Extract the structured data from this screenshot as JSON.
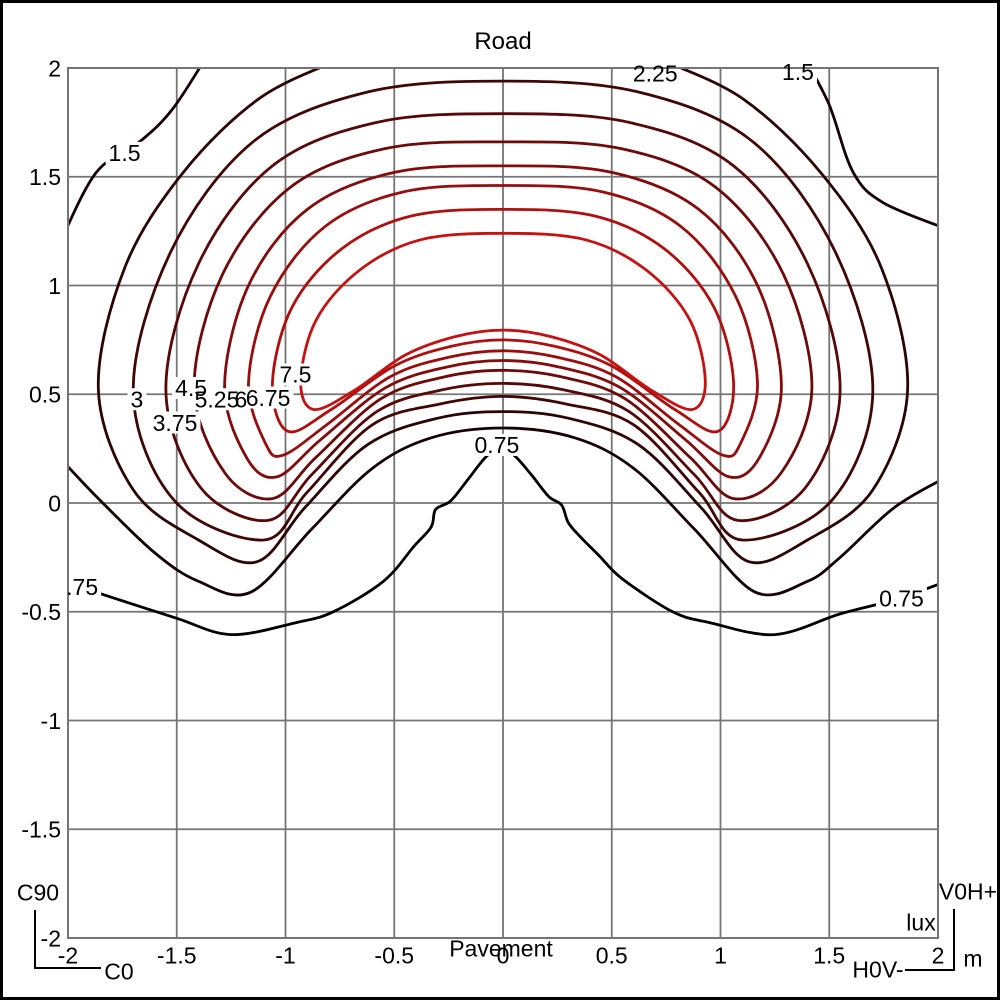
{
  "title": "Road",
  "annotations": {
    "bottom_label": "Pavement",
    "unit_lux": "lux",
    "unit_m": "m",
    "c90_label": "C90",
    "c0_label": "C0",
    "v0h_label": "V0H+",
    "h0v_label": "H0V-"
  },
  "axes": {
    "x_range": [
      -2,
      2
    ],
    "y_range": [
      -2,
      2
    ],
    "grid_step": 0.5,
    "x_ticks": [
      "-2",
      "-1.5",
      "-1",
      "-0.5",
      "0",
      "0.5",
      "1",
      "1.5",
      "2"
    ],
    "y_ticks": [
      "2",
      "1.5",
      "1",
      "0.5",
      "0",
      "-0.5",
      "-1",
      "-1.5",
      "-2"
    ],
    "unit": "m",
    "grid_color": "#757575"
  },
  "chart_data": {
    "type": "contour",
    "title": "Road",
    "value_unit": "lux",
    "position_unit": "m",
    "levels_lux": [
      0.75,
      1.5,
      2.25,
      3,
      3.75,
      4.5,
      5.25,
      6,
      6.75,
      7.5
    ],
    "level_step": 0.75,
    "grid_on": true,
    "contours": [
      {
        "value": 0.75,
        "color": "#000000",
        "closed": false,
        "points": [
          [
            -2.04,
            -0.355
          ],
          [
            -1.78,
            -0.44
          ],
          [
            -1.5,
            -0.53
          ],
          [
            -1.25,
            -0.605
          ],
          [
            -0.95,
            -0.55
          ],
          [
            -0.78,
            -0.5
          ],
          [
            -0.55,
            -0.36
          ],
          [
            -0.41,
            -0.2
          ],
          [
            -0.33,
            -0.11
          ],
          [
            -0.31,
            -0.03
          ],
          [
            -0.24,
            0.01
          ],
          [
            -0.16,
            0.11
          ],
          [
            -0.08,
            0.21
          ],
          [
            -0.02,
            0.25
          ],
          [
            0.05,
            0.22
          ],
          [
            0.13,
            0.13
          ],
          [
            0.21,
            0.03
          ],
          [
            0.27,
            -0.01
          ],
          [
            0.3,
            -0.09
          ],
          [
            0.36,
            -0.16
          ],
          [
            0.44,
            -0.24
          ],
          [
            0.55,
            -0.35
          ],
          [
            0.78,
            -0.5
          ],
          [
            0.95,
            -0.55
          ],
          [
            1.25,
            -0.605
          ],
          [
            1.55,
            -0.51
          ],
          [
            1.8,
            -0.445
          ],
          [
            2.04,
            -0.36
          ]
        ]
      },
      {
        "value": 1.5,
        "color": "#140202",
        "closed": false,
        "points": [
          [
            -1.37,
            2.04
          ],
          [
            -1.52,
            1.81
          ],
          [
            -1.66,
            1.67
          ],
          [
            -1.87,
            1.52
          ],
          [
            -2.04,
            1.19
          ]
        ]
      },
      {
        "value": 1.5,
        "color": "#140202",
        "closed": false,
        "points": [
          [
            -2.04,
            0.21
          ],
          [
            -1.86,
            0.02
          ],
          [
            -1.6,
            -0.23
          ],
          [
            -1.4,
            -0.36
          ],
          [
            -1.16,
            -0.41
          ],
          [
            -0.88,
            -0.12
          ],
          [
            -0.6,
            0.16
          ],
          [
            -0.33,
            0.3
          ],
          [
            0,
            0.345
          ],
          [
            0.33,
            0.3
          ],
          [
            0.6,
            0.16
          ],
          [
            0.88,
            -0.12
          ],
          [
            1.16,
            -0.41
          ],
          [
            1.4,
            -0.36
          ],
          [
            1.55,
            -0.25
          ],
          [
            1.8,
            -0.02
          ],
          [
            2.04,
            0.12
          ]
        ]
      },
      {
        "value": 1.5,
        "color": "#140202",
        "closed": false,
        "points": [
          [
            1.39,
            2.04
          ],
          [
            1.5,
            1.83
          ],
          [
            1.61,
            1.52
          ],
          [
            1.75,
            1.38
          ],
          [
            2.04,
            1.26
          ]
        ]
      },
      {
        "value": 2.25,
        "color": "#2a0404",
        "closed": false,
        "points": [
          [
            -0.75,
            2.04
          ],
          [
            -1.12,
            1.86
          ],
          [
            -1.47,
            1.52
          ],
          [
            -1.74,
            1.08
          ],
          [
            -1.86,
            0.52
          ],
          [
            -1.7,
            0.06
          ],
          [
            -1.4,
            -0.17
          ],
          [
            -1.13,
            -0.27
          ],
          [
            -0.91,
            -0.02
          ],
          [
            -0.62,
            0.27
          ],
          [
            -0.3,
            0.39
          ],
          [
            0,
            0.42
          ],
          [
            0.3,
            0.39
          ],
          [
            0.62,
            0.27
          ],
          [
            0.91,
            -0.02
          ],
          [
            1.13,
            -0.27
          ],
          [
            1.4,
            -0.17
          ],
          [
            1.7,
            0.06
          ],
          [
            1.86,
            0.52
          ],
          [
            1.74,
            1.08
          ],
          [
            1.46,
            1.52
          ],
          [
            1.1,
            1.86
          ],
          [
            0.72,
            2.04
          ]
        ]
      },
      {
        "value": 3,
        "color": "#400606",
        "closed": true,
        "points": [
          [
            0,
            1.94
          ],
          [
            0.62,
            1.89
          ],
          [
            1.15,
            1.66
          ],
          [
            1.53,
            1.15
          ],
          [
            1.7,
            0.51
          ],
          [
            1.51,
            0.01
          ],
          [
            1.1,
            -0.17
          ],
          [
            0.9,
            0.05
          ],
          [
            0.6,
            0.36
          ],
          [
            0.29,
            0.455
          ],
          [
            0,
            0.49
          ],
          [
            -0.29,
            0.455
          ],
          [
            -0.6,
            0.36
          ],
          [
            -0.9,
            0.05
          ],
          [
            -1.1,
            -0.17
          ],
          [
            -1.51,
            0.01
          ],
          [
            -1.7,
            0.51
          ],
          [
            -1.53,
            1.15
          ],
          [
            -1.15,
            1.66
          ],
          [
            -0.62,
            1.89
          ]
        ]
      },
      {
        "value": 3.75,
        "color": "#560808",
        "closed": true,
        "points": [
          [
            0,
            1.79
          ],
          [
            0.58,
            1.75
          ],
          [
            1.06,
            1.55
          ],
          [
            1.4,
            1.1
          ],
          [
            1.55,
            0.52
          ],
          [
            1.39,
            0.07
          ],
          [
            1.08,
            -0.08
          ],
          [
            0.88,
            0.13
          ],
          [
            0.58,
            0.42
          ],
          [
            0.28,
            0.52
          ],
          [
            0,
            0.55
          ],
          [
            -0.28,
            0.52
          ],
          [
            -0.58,
            0.42
          ],
          [
            -0.88,
            0.13
          ],
          [
            -1.08,
            -0.08
          ],
          [
            -1.39,
            0.07
          ],
          [
            -1.55,
            0.52
          ],
          [
            -1.4,
            1.1
          ],
          [
            -1.06,
            1.55
          ],
          [
            -0.58,
            1.75
          ]
        ]
      },
      {
        "value": 4.5,
        "color": "#6c0909",
        "closed": true,
        "points": [
          [
            0,
            1.66
          ],
          [
            0.54,
            1.63
          ],
          [
            0.98,
            1.45
          ],
          [
            1.29,
            1.05
          ],
          [
            1.42,
            0.53
          ],
          [
            1.28,
            0.14
          ],
          [
            1.06,
            0.02
          ],
          [
            0.86,
            0.21
          ],
          [
            0.56,
            0.48
          ],
          [
            0.27,
            0.58
          ],
          [
            0,
            0.61
          ],
          [
            -0.27,
            0.58
          ],
          [
            -0.56,
            0.48
          ],
          [
            -0.86,
            0.21
          ],
          [
            -1.06,
            0.02
          ],
          [
            -1.28,
            0.14
          ],
          [
            -1.42,
            0.53
          ],
          [
            -1.29,
            1.05
          ],
          [
            -0.98,
            1.45
          ],
          [
            -0.54,
            1.63
          ]
        ]
      },
      {
        "value": 5.25,
        "color": "#820b0b",
        "closed": true,
        "points": [
          [
            0,
            1.55
          ],
          [
            0.5,
            1.52
          ],
          [
            0.9,
            1.35
          ],
          [
            1.17,
            1.0
          ],
          [
            1.28,
            0.54
          ],
          [
            1.18,
            0.21
          ],
          [
            1.04,
            0.12
          ],
          [
            0.84,
            0.29
          ],
          [
            0.54,
            0.53
          ],
          [
            0.26,
            0.625
          ],
          [
            0,
            0.655
          ],
          [
            -0.26,
            0.625
          ],
          [
            -0.54,
            0.53
          ],
          [
            -0.84,
            0.29
          ],
          [
            -1.04,
            0.12
          ],
          [
            -1.18,
            0.21
          ],
          [
            -1.28,
            0.54
          ],
          [
            -1.17,
            1.0
          ],
          [
            -0.9,
            1.35
          ],
          [
            -0.5,
            1.52
          ]
        ]
      },
      {
        "value": 6,
        "color": "#980d0d",
        "closed": true,
        "points": [
          [
            0,
            1.46
          ],
          [
            0.46,
            1.43
          ],
          [
            0.82,
            1.27
          ],
          [
            1.07,
            0.95
          ],
          [
            1.17,
            0.55
          ],
          [
            1.09,
            0.27
          ],
          [
            1.01,
            0.22
          ],
          [
            0.81,
            0.36
          ],
          [
            0.52,
            0.58
          ],
          [
            0.25,
            0.67
          ],
          [
            0,
            0.7
          ],
          [
            -0.25,
            0.67
          ],
          [
            -0.52,
            0.58
          ],
          [
            -0.81,
            0.36
          ],
          [
            -1.01,
            0.22
          ],
          [
            -1.09,
            0.27
          ],
          [
            -1.17,
            0.55
          ],
          [
            -1.07,
            0.95
          ],
          [
            -0.82,
            1.27
          ],
          [
            -0.46,
            1.43
          ]
        ]
      },
      {
        "value": 6.75,
        "color": "#ae0f0f",
        "closed": true,
        "points": [
          [
            0,
            1.35
          ],
          [
            0.42,
            1.32
          ],
          [
            0.74,
            1.17
          ],
          [
            0.97,
            0.9
          ],
          [
            1.06,
            0.55
          ],
          [
            0.99,
            0.33
          ],
          [
            0.79,
            0.43
          ],
          [
            0.5,
            0.63
          ],
          [
            0.24,
            0.72
          ],
          [
            0,
            0.75
          ],
          [
            -0.24,
            0.72
          ],
          [
            -0.5,
            0.63
          ],
          [
            -0.79,
            0.43
          ],
          [
            -0.99,
            0.33
          ],
          [
            -1.06,
            0.55
          ],
          [
            -0.97,
            0.9
          ],
          [
            -0.74,
            1.17
          ],
          [
            -0.42,
            1.32
          ]
        ]
      },
      {
        "value": 7.5,
        "color": "#c41111",
        "closed": true,
        "points": [
          [
            0,
            1.24
          ],
          [
            0.38,
            1.21
          ],
          [
            0.66,
            1.07
          ],
          [
            0.86,
            0.84
          ],
          [
            0.93,
            0.56
          ],
          [
            0.87,
            0.43
          ],
          [
            0.68,
            0.52
          ],
          [
            0.45,
            0.68
          ],
          [
            0.22,
            0.765
          ],
          [
            0,
            0.795
          ],
          [
            -0.22,
            0.765
          ],
          [
            -0.45,
            0.68
          ],
          [
            -0.68,
            0.52
          ],
          [
            -0.87,
            0.43
          ],
          [
            -0.93,
            0.56
          ],
          [
            -0.86,
            0.84
          ],
          [
            -0.66,
            1.07
          ],
          [
            -0.38,
            1.21
          ]
        ]
      }
    ],
    "contour_labels": [
      {
        "text": ".75",
        "value": 0.75,
        "x": -1.935,
        "y": -0.385
      },
      {
        "text": "0.75",
        "value": 0.75,
        "x": 1.832,
        "y": -0.437
      },
      {
        "text": "0.75",
        "value": 0.75,
        "x": -0.028,
        "y": 0.267
      },
      {
        "text": "1.5",
        "value": 1.5,
        "x": -1.74,
        "y": 1.61
      },
      {
        "text": "1.5",
        "value": 1.5,
        "x": 1.356,
        "y": 1.982
      },
      {
        "text": "2.25",
        "value": 2.25,
        "x": 0.7,
        "y": 1.977
      },
      {
        "text": "3",
        "value": 3,
        "x": -1.683,
        "y": 0.477
      },
      {
        "text": "3.75",
        "value": 3.75,
        "x": -1.508,
        "y": 0.37
      },
      {
        "text": "4.5",
        "value": 4.5,
        "x": -1.434,
        "y": 0.529
      },
      {
        "text": "5.25",
        "value": 5.25,
        "x": -1.315,
        "y": 0.477
      },
      {
        "text": "6",
        "value": 6,
        "x": -1.205,
        "y": 0.477
      },
      {
        "text": "6.75",
        "value": 6.75,
        "x": -1.08,
        "y": 0.485
      },
      {
        "text": "7.5",
        "value": 7.5,
        "x": -0.954,
        "y": 0.591
      }
    ]
  }
}
